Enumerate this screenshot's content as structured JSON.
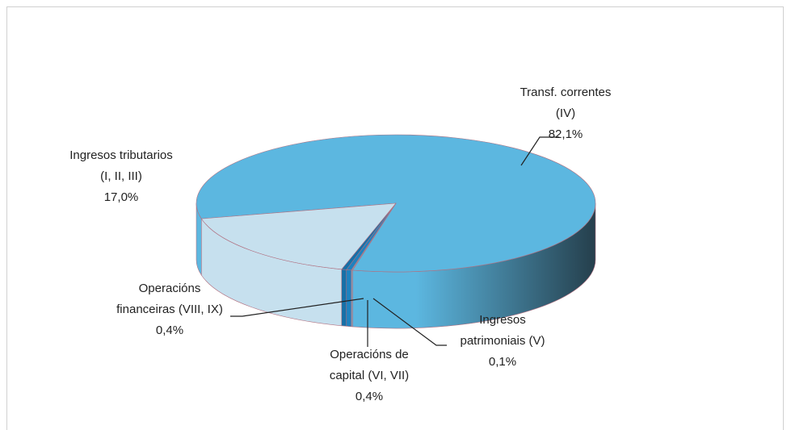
{
  "chart_data": {
    "type": "pie3d",
    "categories": [
      [
        "Transf. correntes",
        "(IV)"
      ],
      [
        "Ingresos",
        "patrimoniais (V)"
      ],
      [
        "Operacións de",
        "capital (VI, VII)"
      ],
      [
        "Operacións",
        "financeiras (VIII, IX)"
      ],
      [
        "Ingresos tributarios",
        "(I, II, III)"
      ]
    ],
    "values": [
      82.1,
      0.1,
      0.4,
      0.4,
      17.0
    ],
    "value_labels": [
      "82,1%",
      "0,1%",
      "0,4%",
      "0,4%",
      "17,0%"
    ],
    "colors": [
      "#5cb7e0",
      "#8aa0b0",
      "#1e82bf",
      "#1670a8",
      "#c6e0ee"
    ]
  }
}
